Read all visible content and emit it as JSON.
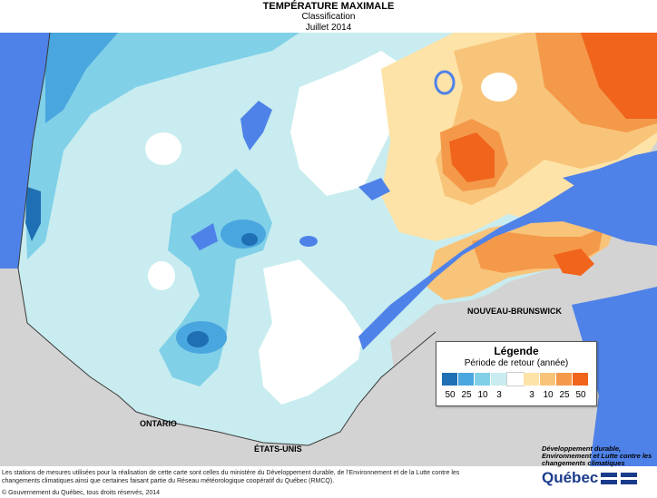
{
  "header": {
    "title": "TEMPÉRATURE MAXIMALE",
    "subtitle": "Classification",
    "period": "Juillet 2014"
  },
  "map_labels": {
    "nouveau_brunswick": "NOUVEAU-BRUNSWICK",
    "ontario": "ONTARIO",
    "etats_unis": "ÉTATS-UNIS"
  },
  "legend": {
    "title": "Légende",
    "subtitle": "Période de retour (année)",
    "classes": [
      {
        "label": "50",
        "color": "#1f6fb4"
      },
      {
        "label": "25",
        "color": "#4aa6de"
      },
      {
        "label": "10",
        "color": "#80d0e8"
      },
      {
        "label": "3",
        "color": "#c8ecef"
      },
      {
        "label": "",
        "color": "#ffffff"
      },
      {
        "label": "3",
        "color": "#fde3a8"
      },
      {
        "label": "10",
        "color": "#f8c47a"
      },
      {
        "label": "25",
        "color": "#f4994a"
      },
      {
        "label": "50",
        "color": "#f0641c"
      }
    ]
  },
  "colors": {
    "water": "#4f82e8",
    "land_outside": "#d3d3d3",
    "border": "#3a3a3a"
  },
  "footer": {
    "note": "Les stations de mesures utilisées pour la réalisation de cette carte sont celles du ministère du Développement durable, de l’Environnement et de la Lutte contre les changements climatiques ainsi que certaines faisant partie du Réseau météorologique coopératif du Québec (RMCQ).",
    "copyright": "© Gouvernement du Québec, tous droits réservés, 2014"
  },
  "branding": {
    "ministry": "Développement durable, Environnement et Lutte contre les changements climatiques",
    "logo_text": "Québec"
  }
}
